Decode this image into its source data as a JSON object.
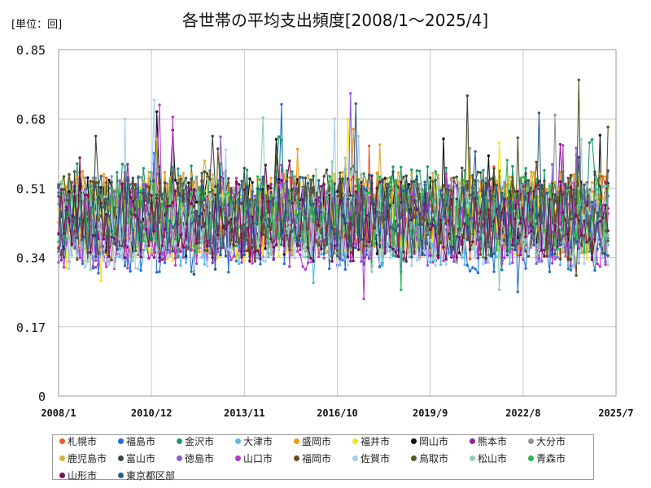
{
  "chart_data": {
    "type": "line",
    "title": "各世帯の平均支出頻度[2008/1～2025/4]",
    "unit_label": "[単位：回]",
    "x_ticks": [
      "2008/1",
      "2010/12",
      "2013/11",
      "2016/10",
      "2019/9",
      "2022/8",
      "2025/7"
    ],
    "y_ticks": [
      "0",
      "0.17",
      "0.34",
      "0.51",
      "0.68",
      "0.85"
    ],
    "ylim": [
      0,
      0.85
    ],
    "xlim": [
      "2008/1",
      "2025/7"
    ],
    "grid": true,
    "legend_position": "bottom",
    "start": "2008/1",
    "end": "2025/4",
    "series": [
      {
        "name": "札幌市",
        "color": "#f05a24",
        "base": 0.44
      },
      {
        "name": "福島市",
        "color": "#1f6fd6",
        "base": 0.4
      },
      {
        "name": "金沢市",
        "color": "#1a9a6c",
        "base": 0.47
      },
      {
        "name": "大津市",
        "color": "#5bb8e8",
        "base": 0.42
      },
      {
        "name": "盛岡市",
        "color": "#f29b16",
        "base": 0.45
      },
      {
        "name": "福井市",
        "color": "#f7e21a",
        "base": 0.43
      },
      {
        "name": "岡山市",
        "color": "#111111",
        "base": 0.44
      },
      {
        "name": "熊本市",
        "color": "#9a1fa0",
        "base": 0.43
      },
      {
        "name": "大分市",
        "color": "#8a97a3",
        "base": 0.44
      },
      {
        "name": "鹿児島市",
        "color": "#d7b03a",
        "base": 0.45
      },
      {
        "name": "富山市",
        "color": "#3b4a3e",
        "base": 0.46
      },
      {
        "name": "徳島市",
        "color": "#8e5bd6",
        "base": 0.42
      },
      {
        "name": "山口市",
        "color": "#b53cc9",
        "base": 0.41
      },
      {
        "name": "福岡市",
        "color": "#6b4a22",
        "base": 0.43
      },
      {
        "name": "佐賀市",
        "color": "#a9cdf0",
        "base": 0.41
      },
      {
        "name": "鳥取市",
        "color": "#4c5a2a",
        "base": 0.45
      },
      {
        "name": "松山市",
        "color": "#8fd0ad",
        "base": 0.43
      },
      {
        "name": "青森市",
        "color": "#2bb84a",
        "base": 0.44
      },
      {
        "name": "山形市",
        "color": "#7a0f5a",
        "base": 0.43
      },
      {
        "name": "東京都区部",
        "color": "#2a5f8a",
        "base": 0.44
      }
    ]
  }
}
